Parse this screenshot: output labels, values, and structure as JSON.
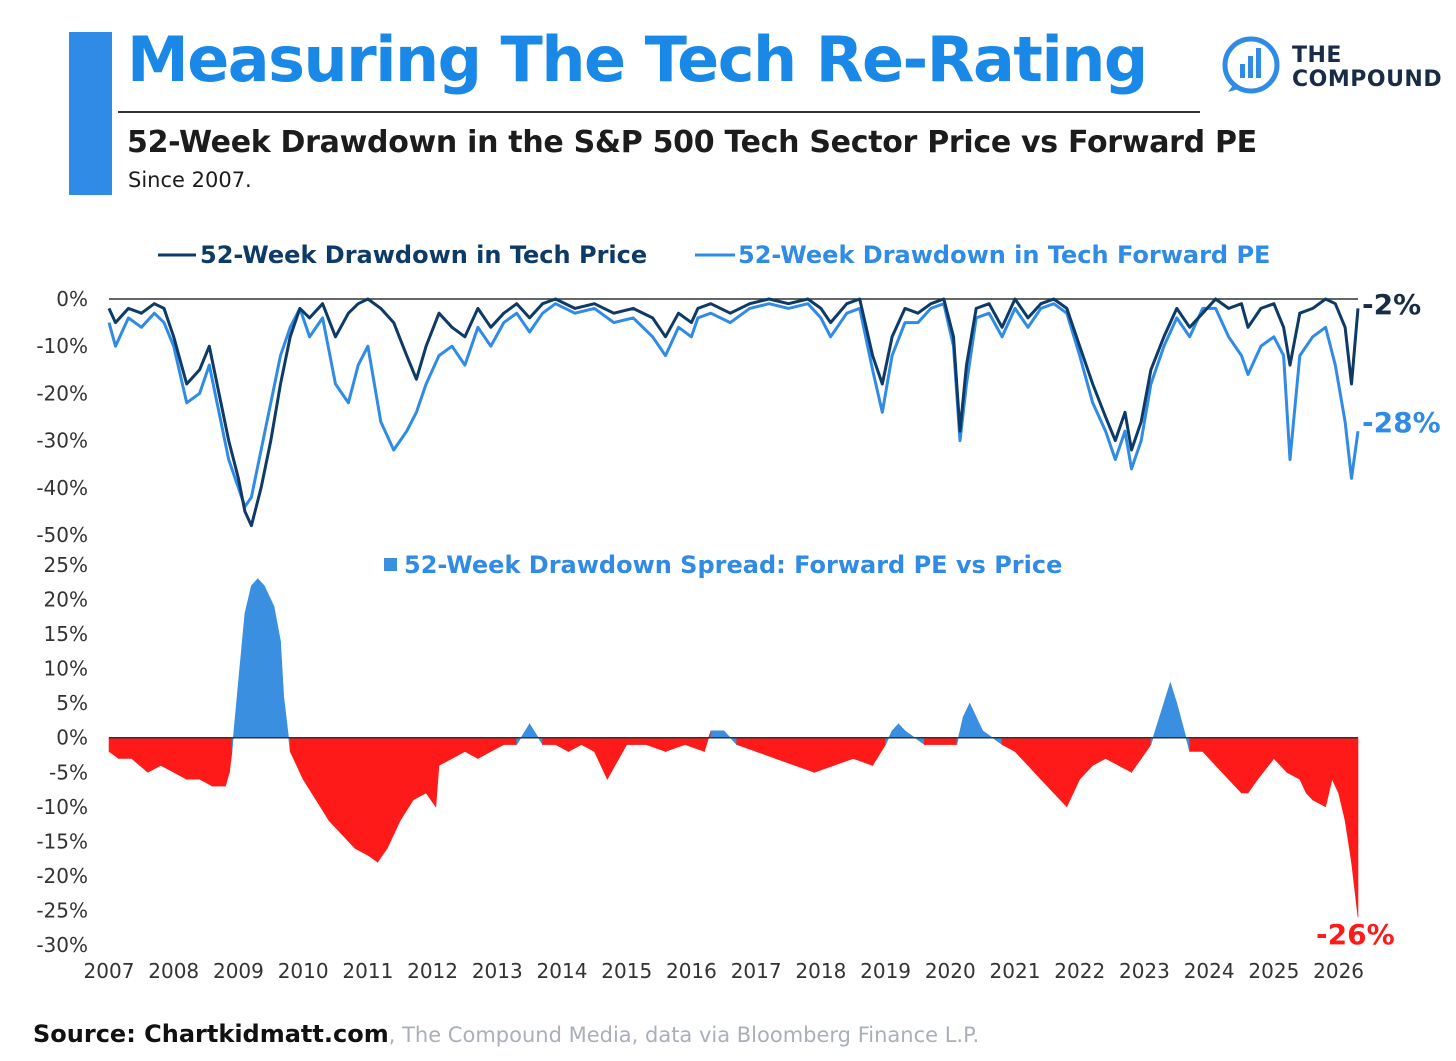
{
  "header": {
    "title": "Measuring The Tech Re-Rating",
    "subtitle": "52-Week Drawdown in the S&P 500 Tech Sector Price vs Forward PE",
    "since": "Since 2007.",
    "logo_line1": "THE",
    "logo_line2": "COMPOUND"
  },
  "footer": {
    "source_bold": "Source: Chartkidmatt.com",
    "source_rest": ", The Compound Media, data via Bloomberg Finance L.P."
  },
  "colors": {
    "accent": "#2f8be6",
    "price_line": "#0d3a66",
    "pe_line": "#2f8be6",
    "spread_positive": "#3a8fe0",
    "spread_negative": "#ff1a1a"
  },
  "chart_data": [
    {
      "type": "line",
      "xlim": [
        2007,
        2026.3
      ],
      "ylim": [
        -50,
        0
      ],
      "yticks": [
        0,
        -10,
        -20,
        -30,
        -40,
        -50
      ],
      "ytick_labels": [
        "0%",
        "-10%",
        "-20%",
        "-30%",
        "-40%",
        "-50%"
      ],
      "legend_placement": "top",
      "series": [
        {
          "name": "52-Week Drawdown in Tech Price",
          "end_label": "-2%",
          "x": [
            2007.0,
            2007.1,
            2007.3,
            2007.5,
            2007.7,
            2007.85,
            2008.0,
            2008.2,
            2008.4,
            2008.55,
            2008.7,
            2008.85,
            2009.0,
            2009.1,
            2009.2,
            2009.35,
            2009.5,
            2009.65,
            2009.8,
            2009.95,
            2010.1,
            2010.3,
            2010.5,
            2010.7,
            2010.85,
            2011.0,
            2011.2,
            2011.4,
            2011.6,
            2011.75,
            2011.9,
            2012.1,
            2012.3,
            2012.5,
            2012.7,
            2012.9,
            2013.1,
            2013.3,
            2013.5,
            2013.7,
            2013.9,
            2014.2,
            2014.5,
            2014.8,
            2015.1,
            2015.4,
            2015.6,
            2015.8,
            2016.0,
            2016.1,
            2016.3,
            2016.6,
            2016.9,
            2017.2,
            2017.5,
            2017.8,
            2018.0,
            2018.15,
            2018.4,
            2018.6,
            2018.8,
            2018.95,
            2019.1,
            2019.3,
            2019.5,
            2019.7,
            2019.9,
            2020.05,
            2020.15,
            2020.25,
            2020.4,
            2020.6,
            2020.8,
            2021.0,
            2021.2,
            2021.4,
            2021.6,
            2021.8,
            2022.0,
            2022.2,
            2022.4,
            2022.55,
            2022.7,
            2022.8,
            2022.95,
            2023.1,
            2023.3,
            2023.5,
            2023.7,
            2023.9,
            2024.1,
            2024.3,
            2024.5,
            2024.6,
            2024.8,
            2025.0,
            2025.15,
            2025.25,
            2025.4,
            2025.6,
            2025.8,
            2025.95,
            2026.1,
            2026.2,
            2026.3
          ],
          "y": [
            -2,
            -5,
            -2,
            -3,
            -1,
            -2,
            -8,
            -18,
            -15,
            -10,
            -20,
            -30,
            -38,
            -45,
            -48,
            -40,
            -30,
            -18,
            -8,
            -2,
            -4,
            -1,
            -8,
            -3,
            -1,
            0,
            -2,
            -5,
            -12,
            -17,
            -10,
            -3,
            -6,
            -8,
            -2,
            -6,
            -3,
            -1,
            -4,
            -1,
            0,
            -2,
            -1,
            -3,
            -2,
            -4,
            -8,
            -3,
            -5,
            -2,
            -1,
            -3,
            -1,
            0,
            -1,
            0,
            -2,
            -5,
            -1,
            0,
            -12,
            -18,
            -8,
            -2,
            -3,
            -1,
            0,
            -8,
            -28,
            -14,
            -2,
            -1,
            -6,
            0,
            -4,
            -1,
            0,
            -2,
            -10,
            -18,
            -25,
            -30,
            -24,
            -32,
            -26,
            -15,
            -8,
            -2,
            -6,
            -3,
            0,
            -2,
            -1,
            -6,
            -2,
            -1,
            -6,
            -14,
            -3,
            -2,
            0,
            -1,
            -6,
            -18,
            -2
          ]
        },
        {
          "name": "52-Week Drawdown in Tech Forward PE",
          "end_label": "-28%",
          "x": [
            2007.0,
            2007.1,
            2007.3,
            2007.5,
            2007.7,
            2007.85,
            2008.0,
            2008.2,
            2008.4,
            2008.55,
            2008.7,
            2008.85,
            2009.0,
            2009.1,
            2009.2,
            2009.35,
            2009.5,
            2009.65,
            2009.8,
            2009.95,
            2010.1,
            2010.3,
            2010.5,
            2010.7,
            2010.85,
            2011.0,
            2011.2,
            2011.4,
            2011.6,
            2011.75,
            2011.9,
            2012.1,
            2012.3,
            2012.5,
            2012.7,
            2012.9,
            2013.1,
            2013.3,
            2013.5,
            2013.7,
            2013.9,
            2014.2,
            2014.5,
            2014.8,
            2015.1,
            2015.4,
            2015.6,
            2015.8,
            2016.0,
            2016.1,
            2016.3,
            2016.6,
            2016.9,
            2017.2,
            2017.5,
            2017.8,
            2018.0,
            2018.15,
            2018.4,
            2018.6,
            2018.8,
            2018.95,
            2019.1,
            2019.3,
            2019.5,
            2019.7,
            2019.9,
            2020.05,
            2020.15,
            2020.25,
            2020.4,
            2020.6,
            2020.8,
            2021.0,
            2021.2,
            2021.4,
            2021.6,
            2021.8,
            2022.0,
            2022.2,
            2022.4,
            2022.55,
            2022.7,
            2022.8,
            2022.95,
            2023.1,
            2023.3,
            2023.5,
            2023.7,
            2023.9,
            2024.1,
            2024.3,
            2024.5,
            2024.6,
            2024.8,
            2025.0,
            2025.15,
            2025.25,
            2025.4,
            2025.6,
            2025.8,
            2025.95,
            2026.1,
            2026.2,
            2026.3
          ],
          "y": [
            -5,
            -10,
            -4,
            -6,
            -3,
            -5,
            -10,
            -22,
            -20,
            -14,
            -24,
            -34,
            -40,
            -44,
            -42,
            -32,
            -22,
            -12,
            -6,
            -2,
            -8,
            -4,
            -18,
            -22,
            -14,
            -10,
            -26,
            -32,
            -28,
            -24,
            -18,
            -12,
            -10,
            -14,
            -6,
            -10,
            -5,
            -3,
            -7,
            -3,
            -1,
            -3,
            -2,
            -5,
            -4,
            -8,
            -12,
            -6,
            -8,
            -4,
            -3,
            -5,
            -2,
            -1,
            -2,
            -1,
            -4,
            -8,
            -3,
            -2,
            -15,
            -24,
            -12,
            -5,
            -5,
            -2,
            -1,
            -10,
            -30,
            -18,
            -4,
            -3,
            -8,
            -2,
            -6,
            -2,
            -1,
            -3,
            -12,
            -22,
            -28,
            -34,
            -28,
            -36,
            -30,
            -18,
            -10,
            -4,
            -8,
            -2,
            -2,
            -8,
            -12,
            -16,
            -10,
            -8,
            -12,
            -34,
            -12,
            -8,
            -6,
            -14,
            -26,
            -38,
            -28
          ]
        }
      ]
    },
    {
      "type": "area",
      "title": "52-Week Drawdown Spread: Forward PE vs Price",
      "xlim": [
        2007,
        2026.3
      ],
      "ylim": [
        -30,
        25
      ],
      "yticks": [
        25,
        20,
        15,
        10,
        5,
        0,
        -5,
        -10,
        -15,
        -20,
        -25,
        -30
      ],
      "ytick_labels": [
        "25%",
        "20%",
        "15%",
        "10%",
        "5%",
        "0%",
        "-5%",
        "-10%",
        "-15%",
        "-20%",
        "-25%",
        "-30%"
      ],
      "xticks": [
        2007,
        2008,
        2009,
        2010,
        2011,
        2012,
        2013,
        2014,
        2015,
        2016,
        2017,
        2018,
        2019,
        2020,
        2021,
        2022,
        2023,
        2024,
        2025,
        2026
      ],
      "xtick_labels": [
        "2007",
        "2008",
        "2009",
        "2010",
        "2011",
        "2012",
        "2013",
        "2014",
        "2015",
        "2016",
        "2017",
        "2018",
        "2019",
        "2020",
        "2021",
        "2022",
        "2023",
        "2024",
        "2025",
        "2026"
      ],
      "end_label": "-26%",
      "series": [
        {
          "x": [
            2007.0,
            2007.15,
            2007.35,
            2007.6,
            2007.8,
            2008.0,
            2008.2,
            2008.4,
            2008.6,
            2008.8,
            2008.86,
            2008.9,
            2009.0,
            2009.1,
            2009.2,
            2009.3,
            2009.4,
            2009.55,
            2009.65,
            2009.7,
            2009.8,
            2010.0,
            2010.2,
            2010.4,
            2010.6,
            2010.8,
            2011.0,
            2011.15,
            2011.3,
            2011.5,
            2011.7,
            2011.9,
            2012.05,
            2012.1,
            2012.3,
            2012.5,
            2012.7,
            2012.9,
            2013.1,
            2013.3,
            2013.5,
            2013.7,
            2013.9,
            2014.1,
            2014.3,
            2014.5,
            2014.7,
            2015.0,
            2015.3,
            2015.6,
            2015.9,
            2016.2,
            2016.3,
            2016.5,
            2016.7,
            2017.0,
            2017.3,
            2017.6,
            2017.9,
            2018.2,
            2018.5,
            2018.8,
            2019.0,
            2019.1,
            2019.2,
            2019.3,
            2019.6,
            2019.9,
            2020.1,
            2020.2,
            2020.3,
            2020.5,
            2020.8,
            2021.0,
            2021.2,
            2021.4,
            2021.6,
            2021.8,
            2022.0,
            2022.2,
            2022.4,
            2022.6,
            2022.8,
            2022.95,
            2023.1,
            2023.2,
            2023.3,
            2023.4,
            2023.5,
            2023.7,
            2023.9,
            2024.1,
            2024.3,
            2024.5,
            2024.6,
            2024.75,
            2025.0,
            2025.2,
            2025.4,
            2025.5,
            2025.6,
            2025.8,
            2025.9,
            2026.0,
            2026.1,
            2026.2,
            2026.3
          ],
          "y": [
            -2,
            -3,
            -3,
            -5,
            -4,
            -5,
            -6,
            -6,
            -7,
            -7,
            -5,
            -2,
            8,
            18,
            22,
            23,
            22,
            19,
            14,
            6,
            -2,
            -6,
            -9,
            -12,
            -14,
            -16,
            -17,
            -18,
            -16,
            -12,
            -9,
            -8,
            -10,
            -4,
            -3,
            -2,
            -3,
            -2,
            -1,
            -1,
            2,
            -1,
            -1,
            -2,
            -1,
            -2,
            -6,
            -1,
            -1,
            -2,
            -1,
            -2,
            1,
            1,
            -1,
            -2,
            -3,
            -4,
            -5,
            -4,
            -3,
            -4,
            -1,
            1,
            2,
            1,
            -1,
            -1,
            -1,
            3,
            5,
            1,
            -1,
            -2,
            -4,
            -6,
            -8,
            -10,
            -6,
            -4,
            -3,
            -4,
            -5,
            -3,
            -1,
            2,
            5,
            8,
            5,
            -2,
            -2,
            -4,
            -6,
            -8,
            -8,
            -6,
            -3,
            -5,
            -6,
            -8,
            -9,
            -10,
            -6,
            -8,
            -12,
            -18,
            -26
          ]
        }
      ]
    }
  ]
}
